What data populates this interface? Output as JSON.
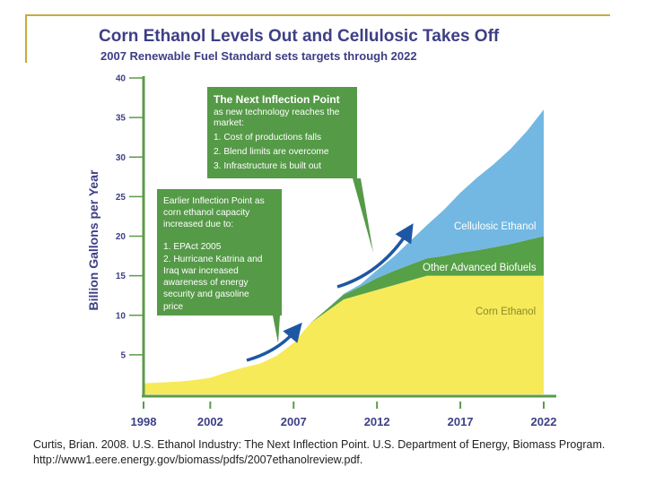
{
  "theme": {
    "frame": "#c9aa3d",
    "title": "#3d3f85",
    "axis": "#5b9b4a",
    "corn": "#f7ea59",
    "advanced": "#56a047",
    "cellulosic": "#72b8e2",
    "box": "#559a47",
    "arrow": "#1d57a3",
    "corn_label": "#8a8a2a",
    "white": "#ffffff"
  },
  "citation": "Curtis, Brian. 2008. U.S. Ethanol Industry: The Next Inflection Point. U.S. Department of Energy, Biomass Program. http://www1.eere.energy.gov/biomass/pdfs/2007ethanolreview.pdf.",
  "chart_data": {
    "type": "area",
    "stacked": true,
    "title": "Corn Ethanol Levels Out and Cellulosic Takes Off",
    "subtitle": "2007 Renewable Fuel Standard sets targets through 2022",
    "xlabel": "",
    "ylabel": "Billion Gallons per Year",
    "xlim": [
      1998,
      2022
    ],
    "ylim": [
      0,
      40
    ],
    "x_ticks": [
      1998,
      2002,
      2007,
      2012,
      2017,
      2022
    ],
    "y_ticks": [
      5,
      10,
      15,
      20,
      25,
      30,
      35,
      40
    ],
    "x": [
      1998,
      1999,
      2000,
      2001,
      2002,
      2003,
      2004,
      2005,
      2006,
      2007,
      2008,
      2009,
      2010,
      2011,
      2012,
      2013,
      2014,
      2015,
      2016,
      2017,
      2018,
      2019,
      2020,
      2021,
      2022
    ],
    "series": [
      {
        "name": "Corn Ethanol",
        "values": [
          1.4,
          1.5,
          1.6,
          1.8,
          2.1,
          2.8,
          3.4,
          3.9,
          4.9,
          6.5,
          9.0,
          10.5,
          12.0,
          12.6,
          13.2,
          13.8,
          14.4,
          15.0,
          15.0,
          15.0,
          15.0,
          15.0,
          15.0,
          15.0,
          15.0
        ]
      },
      {
        "name": "Other Advanced Biofuels",
        "values": [
          0,
          0,
          0,
          0,
          0,
          0,
          0,
          0,
          0,
          0,
          0,
          0.3,
          0.6,
          1.0,
          1.5,
          1.8,
          2.0,
          2.2,
          2.5,
          2.9,
          3.2,
          3.6,
          4.0,
          4.5,
          5.0
        ]
      },
      {
        "name": "Cellulosic Ethanol",
        "values": [
          0,
          0,
          0,
          0,
          0,
          0,
          0,
          0,
          0,
          0,
          0,
          0,
          0.1,
          0.3,
          1.0,
          1.8,
          3.0,
          4.2,
          5.8,
          7.6,
          9.2,
          10.5,
          12.0,
          13.8,
          16.0
        ]
      }
    ],
    "series_labels": [
      "Cellulosic Ethanol",
      "Other Advanced Biofuels",
      "Corn Ethanol"
    ],
    "annotations": [
      {
        "heading": "The Next Inflection Point",
        "lines": [
          "as new technology reaches the",
          "market:",
          "1. Cost of productions falls",
          "2. Blend limits are overcome",
          "3. Infrastructure is built out"
        ]
      },
      {
        "heading": "",
        "lines": [
          "Earlier Inflection Point as",
          "corn ethanol capacity",
          "increased due to:",
          "",
          "1. EPAct 2005",
          "2. Hurricane Katrina and",
          "Iraq war increased",
          "awareness of energy",
          "security and gasoline",
          "price"
        ]
      }
    ]
  }
}
